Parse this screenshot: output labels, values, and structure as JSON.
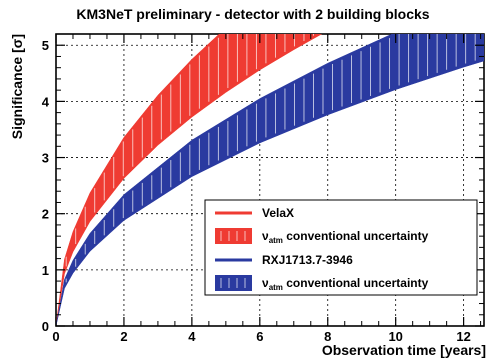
{
  "chart_data": {
    "type": "area",
    "title": "KM3NeT preliminary - detector with 2 building blocks",
    "xlabel": "Observation time [years]",
    "ylabel": "Significance [σ]",
    "xlim": [
      0,
      12.6
    ],
    "ylim": [
      0,
      5.2
    ],
    "xticks": [
      0,
      2,
      4,
      6,
      8,
      10,
      12
    ],
    "yticks": [
      0,
      1,
      2,
      3,
      4,
      5
    ],
    "grid": true,
    "legend_position": "bottom-right",
    "series": [
      {
        "name": "VelaX",
        "color": "#ef3b32",
        "x": [
          0,
          0.25,
          0.5,
          1,
          2,
          3,
          4,
          5,
          6,
          7,
          8
        ],
        "lower": [
          0,
          0.93,
          1.32,
          1.86,
          2.63,
          3.22,
          3.72,
          4.16,
          4.56,
          4.92,
          5.26
        ],
        "upper": [
          0,
          1.19,
          1.68,
          2.37,
          3.36,
          4.11,
          4.75,
          5.31,
          5.82,
          6.28,
          6.72
        ]
      },
      {
        "name": "RXJ1713.7-3946",
        "color": "#2a3aa0",
        "x": [
          0,
          0.25,
          0.5,
          1,
          2,
          4,
          6,
          8,
          10,
          12,
          12.6
        ],
        "lower": [
          0,
          0.67,
          0.94,
          1.33,
          1.88,
          2.66,
          3.26,
          3.76,
          4.21,
          4.61,
          4.72
        ],
        "upper": [
          0,
          0.83,
          1.17,
          1.65,
          2.34,
          3.31,
          4.05,
          4.68,
          5.23,
          5.73,
          5.87
        ]
      }
    ],
    "legend": [
      {
        "label": "VelaX",
        "kind": "line",
        "color": "#ef3b32"
      },
      {
        "label_prefix": "ν",
        "label_sub": "atm",
        "label_suffix": " conventional uncertainty",
        "kind": "band",
        "color": "#ef3b32"
      },
      {
        "label": "RXJ1713.7-3946",
        "kind": "line",
        "color": "#2a3aa0"
      },
      {
        "label_prefix": "ν",
        "label_sub": "atm",
        "label_suffix": " conventional uncertainty",
        "kind": "band",
        "color": "#2a3aa0"
      }
    ]
  }
}
